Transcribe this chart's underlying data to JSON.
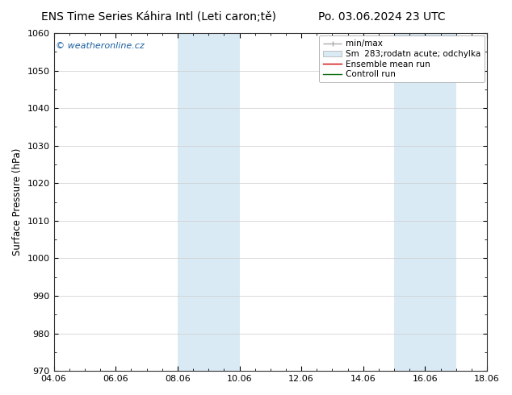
{
  "title_left": "ENS Time Series Káhira Intl (Leti caron;tě)",
  "title_right": "Po. 03.06.2024 23 UTC",
  "ylabel": "Surface Pressure (hPa)",
  "ylim": [
    970,
    1060
  ],
  "yticks": [
    970,
    980,
    990,
    1000,
    1010,
    1020,
    1030,
    1040,
    1050,
    1060
  ],
  "xlim": [
    0,
    14
  ],
  "xtick_positions": [
    0,
    2,
    4,
    6,
    8,
    10,
    12,
    14
  ],
  "xtick_labels": [
    "04.06",
    "06.06",
    "08.06",
    "10.06",
    "12.06",
    "14.06",
    "16.06",
    "18.06"
  ],
  "shaded_bands": [
    {
      "xmin": 4,
      "xmax": 6,
      "color": "#daeaf5"
    },
    {
      "xmin": 11,
      "xmax": 13,
      "color": "#daeaf5"
    }
  ],
  "legend_minmax_color": "#aaaaaa",
  "legend_fill_color": "#daeaf5",
  "legend_fill_edge": "#aaaaaa",
  "legend_ens_color": "#cc0000",
  "legend_ctrl_color": "#006600",
  "watermark": "© weatheronline.cz",
  "watermark_color": "#1a5fa0",
  "background_color": "#ffffff",
  "grid_color": "#cccccc",
  "title_fontsize": 10,
  "label_fontsize": 8.5,
  "tick_fontsize": 8,
  "legend_fontsize": 7.5
}
